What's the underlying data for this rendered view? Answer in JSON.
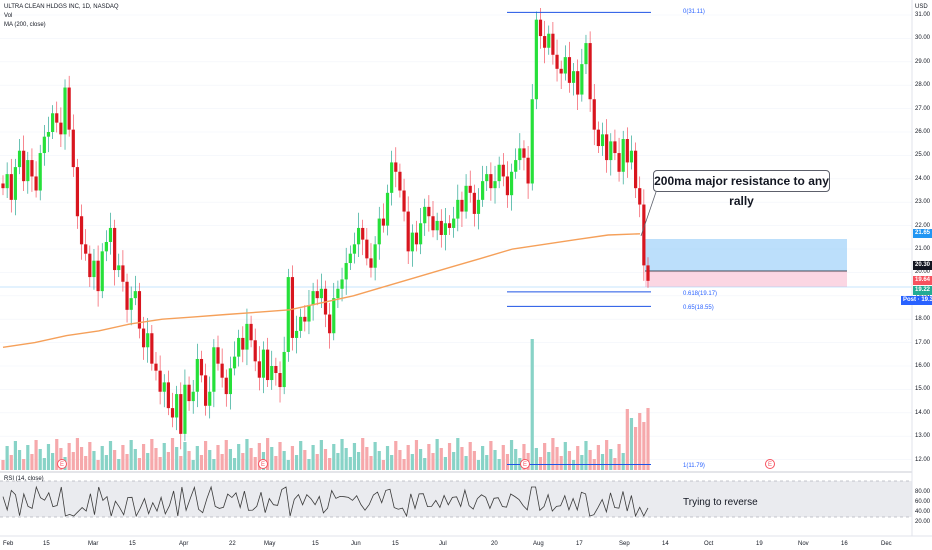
{
  "header": {
    "symbol_line": "ULTRA CLEAN HLDGS INC, 1D, NASDAQ",
    "vol_label": "Vol",
    "ma_label": "MA (200, close)",
    "rsi_label": "RSI (14, close)"
  },
  "price_axis": {
    "currency": "USD",
    "ticks": [
      "31.00",
      "30.00",
      "29.00",
      "28.00",
      "27.00",
      "26.00",
      "25.00",
      "24.00",
      "23.00",
      "22.00",
      "21.00",
      "20.00",
      "19.00",
      "18.00",
      "17.00",
      "16.00",
      "15.00",
      "14.00",
      "13.00",
      "12.00"
    ],
    "tags": [
      {
        "text": "21.65",
        "color": "#2196f3"
      },
      {
        "text": "20.30",
        "color": "#131722"
      },
      {
        "text": "19.64",
        "color": "#f7525f"
      },
      {
        "text": "19.22",
        "color": "#22ab94"
      },
      {
        "text": "Post · 19.38",
        "color": "#2962ff"
      }
    ]
  },
  "rsi_axis": {
    "ticks": [
      "80.00",
      "60.00",
      "40.00",
      "20.00"
    ]
  },
  "time_axis": {
    "labels": [
      "Feb",
      "15",
      "Mar",
      "15",
      "Apr",
      "22",
      "May",
      "15",
      "Jun",
      "15",
      "Jul",
      "20",
      "Aug",
      "17",
      "Sep",
      "14",
      "Oct",
      "19",
      "Nov",
      "16",
      "Dec"
    ]
  },
  "fibonacci": {
    "levels": [
      {
        "text": "0(31.11)"
      },
      {
        "text": "0.618(19.17)"
      },
      {
        "text": "0.65(18.55)"
      },
      {
        "text": "1(11.79)"
      }
    ]
  },
  "annotations": {
    "callout": "200ma major resistance to any rally",
    "rsi_note": "Trying to reverse"
  },
  "events": [
    "E",
    "E",
    "E",
    "E"
  ],
  "chart_data": {
    "type": "candlestick",
    "symbol": "ULTRA CLEAN HLDGS INC",
    "interval": "1D",
    "exchange": "NASDAQ",
    "ylim": [
      11.5,
      31.7
    ],
    "price_levels": {
      "ma200_last": 21.65,
      "prev_close": 20.3,
      "last": 19.64
    },
    "fib_levels": [
      31.11,
      19.17,
      18.55,
      11.79
    ],
    "closes": [
      23.6,
      24.2,
      23.1,
      24.5,
      25.2,
      23.9,
      24.8,
      24.1,
      23.5,
      25.1,
      25.8,
      26.0,
      26.8,
      26.4,
      25.9,
      27.9,
      26.1,
      24.5,
      22.4,
      21.2,
      20.8,
      19.8,
      20.5,
      19.2,
      20.9,
      21.3,
      21.9,
      20.1,
      20.3,
      19.6,
      18.4,
      18.9,
      19.2,
      17.6,
      16.8,
      17.4,
      16.1,
      15.8,
      14.9,
      15.3,
      14.2,
      13.8,
      14.8,
      13.1,
      15.2,
      14.5,
      14.9,
      16.3,
      15.6,
      14.3,
      14.9,
      16.8,
      16.1,
      15.5,
      14.8,
      15.9,
      16.4,
      17.2,
      16.7,
      17.8,
      17.1,
      16.2,
      15.5,
      16.7,
      15.4,
      16.0,
      15.7,
      15.1,
      16.6,
      19.8,
      17.2,
      17.5,
      18.1,
      17.9,
      18.6,
      19.2,
      18.9,
      19.3,
      18.2,
      17.4,
      18.9,
      19.3,
      19.7,
      20.4,
      20.8,
      21.2,
      21.9,
      21.4,
      20.6,
      20.2,
      21.2,
      22.3,
      22.0,
      23.4,
      24.7,
      24.3,
      23.5,
      22.6,
      20.9,
      21.7,
      21.2,
      22.1,
      22.8,
      22.4,
      21.8,
      22.2,
      21.6,
      22.1,
      21.9,
      22.3,
      23.1,
      22.6,
      23.7,
      23.4,
      22.5,
      23.1,
      23.9,
      24.2,
      23.6,
      23.9,
      24.6,
      24.1,
      23.3,
      24.3,
      24.8,
      25.3,
      24.9,
      23.8,
      27.4,
      30.8,
      30.1,
      29.6,
      30.2,
      29.3,
      28.7,
      28.5,
      29.2,
      28.1,
      28.6,
      27.6,
      28.9,
      29.8,
      27.4,
      26.1,
      25.4,
      25.9,
      24.8,
      25.6,
      25.1,
      24.3,
      25.7,
      24.7,
      25.2,
      23.6,
      22.9,
      20.3,
      19.64
    ],
    "ma200": [
      16.8,
      17.0,
      17.3,
      17.5,
      17.8,
      18.0,
      18.1,
      18.2,
      18.3,
      18.4,
      18.7,
      19.0,
      19.4,
      19.8,
      20.2,
      20.6,
      21.0,
      21.2,
      21.4,
      21.6,
      21.65
    ]
  }
}
